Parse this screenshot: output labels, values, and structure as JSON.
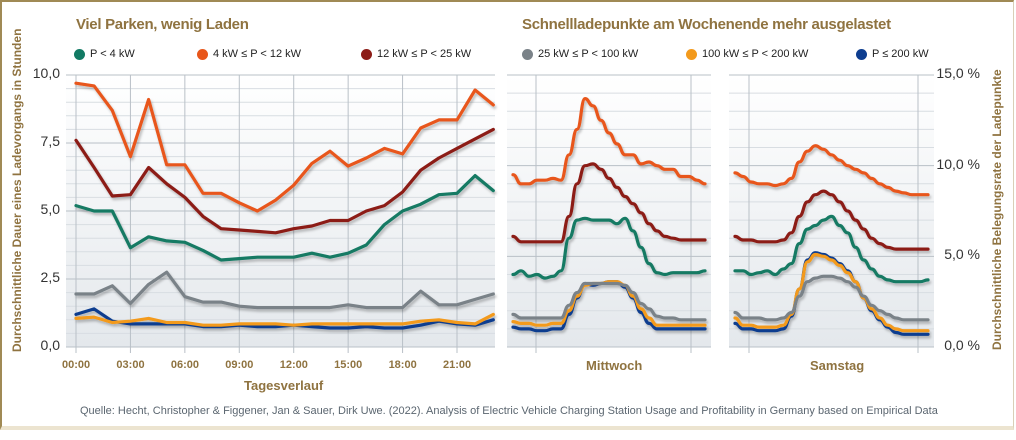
{
  "chart_data": [
    {
      "type": "line",
      "title": "Viel Parken, wenig Laden",
      "xlabel": "Tagesverlauf",
      "ylabel": "Durchschnittliche Dauer eines Ladevorgangs in Stunden",
      "ylim": [
        0,
        10
      ],
      "y_ticks": [
        "0,0",
        "2,5",
        "5,0",
        "7,5",
        "10,0"
      ],
      "y_tick_values": [
        0,
        2.5,
        5,
        7.5,
        10
      ],
      "x_ticks": [
        "00:00",
        "03:00",
        "06:00",
        "09:00",
        "12:00",
        "15:00",
        "18:00",
        "21:00"
      ],
      "x_tick_hours": [
        0,
        3,
        6,
        9,
        12,
        15,
        18,
        21
      ],
      "x": [
        0,
        1,
        2,
        3,
        4,
        5,
        6,
        7,
        8,
        9,
        10,
        11,
        12,
        13,
        14,
        15,
        16,
        17,
        18,
        19,
        20,
        21,
        22,
        23
      ],
      "legend": "top",
      "grid": true,
      "series": [
        {
          "name": "P < 4 kW",
          "color": "#127a64",
          "values": [
            5.2,
            5.0,
            5.0,
            3.65,
            4.05,
            3.9,
            3.85,
            3.55,
            3.2,
            3.25,
            3.3,
            3.3,
            3.3,
            3.45,
            3.3,
            3.45,
            3.75,
            4.5,
            5.0,
            5.25,
            5.6,
            5.65,
            6.3,
            5.75
          ]
        },
        {
          "name": "4 kW ≤ P < 12 kW",
          "color": "#e8561a",
          "values": [
            9.7,
            9.6,
            8.7,
            7.0,
            9.1,
            6.7,
            6.7,
            5.65,
            5.65,
            5.3,
            5.0,
            5.4,
            5.95,
            6.75,
            7.2,
            6.65,
            6.95,
            7.3,
            7.1,
            8.05,
            8.35,
            8.35,
            9.45,
            8.9
          ]
        },
        {
          "name": "12 kW ≤ P < 25 kW",
          "color": "#8c1c17",
          "values": [
            7.6,
            6.6,
            5.55,
            5.6,
            6.6,
            6.0,
            5.5,
            4.8,
            4.35,
            4.3,
            4.25,
            4.2,
            4.35,
            4.45,
            4.65,
            4.65,
            5.0,
            5.2,
            5.7,
            6.5,
            6.95,
            7.3,
            7.65,
            8.0
          ]
        },
        {
          "name": "25 kW ≤ P < 100 kW",
          "color": "#7a8288",
          "values": [
            1.95,
            1.95,
            2.25,
            1.6,
            2.3,
            2.75,
            1.85,
            1.65,
            1.65,
            1.5,
            1.45,
            1.45,
            1.45,
            1.45,
            1.45,
            1.55,
            1.45,
            1.45,
            1.45,
            2.05,
            1.55,
            1.55,
            1.75,
            1.95
          ]
        },
        {
          "name": "100 kW ≤ P < 200 kW",
          "color": "#f39a1c",
          "values": [
            1.05,
            1.1,
            0.9,
            0.95,
            1.05,
            0.9,
            0.9,
            0.8,
            0.8,
            0.85,
            0.85,
            0.85,
            0.8,
            0.85,
            0.85,
            0.85,
            0.85,
            0.85,
            0.85,
            0.95,
            1.0,
            0.9,
            0.85,
            1.2
          ]
        },
        {
          "name": "P ≤ 200 kW",
          "color": "#0d3d8f",
          "values": [
            1.2,
            1.4,
            0.95,
            0.85,
            0.85,
            0.85,
            0.85,
            0.75,
            0.75,
            0.8,
            0.75,
            0.75,
            0.8,
            0.75,
            0.7,
            0.7,
            0.75,
            0.7,
            0.7,
            0.8,
            0.95,
            0.85,
            0.8,
            1.0
          ]
        }
      ]
    },
    {
      "type": "line",
      "title": "Schnellladepunkte am Wochenende mehr ausgelastet",
      "ylabel": "Durchschnittliche Belegungsrate der Ladepunkte",
      "ylim": [
        0,
        15
      ],
      "y_ticks": [
        "0,0 %",
        "5,0 %",
        "10,0 %",
        "15,0 %"
      ],
      "y_tick_values": [
        0,
        5,
        10,
        15
      ],
      "panels": [
        "Mittwoch",
        "Samstag"
      ],
      "legend": "top",
      "grid": true,
      "x_hours": [
        0,
        1,
        2,
        3,
        4,
        5,
        6,
        7,
        8,
        9,
        10,
        11,
        12,
        13,
        14,
        15,
        16,
        17,
        18,
        19,
        20,
        21,
        22,
        23,
        24
      ],
      "series": [
        {
          "name": "P < 4 kW",
          "color": "#127a64",
          "Mittwoch": [
            4.0,
            4.2,
            3.9,
            4.0,
            3.8,
            3.9,
            4.2,
            6.0,
            7.0,
            7.1,
            7.0,
            7.0,
            7.0,
            6.8,
            7.1,
            6.4,
            5.5,
            4.6,
            4.1,
            4.0,
            4.1,
            4.1,
            4.1,
            4.1,
            4.2
          ],
          "Samstag": [
            4.2,
            4.2,
            4.0,
            4.1,
            4.2,
            4.0,
            4.3,
            4.6,
            5.7,
            6.5,
            6.7,
            7.0,
            7.2,
            6.7,
            6.3,
            5.5,
            4.8,
            4.3,
            3.9,
            3.7,
            3.6,
            3.6,
            3.6,
            3.6,
            3.7
          ]
        },
        {
          "name": "4 kW ≤ P < 12 kW",
          "color": "#e8561a",
          "Mittwoch": [
            9.5,
            9.0,
            9.0,
            9.2,
            9.2,
            9.3,
            9.2,
            10.6,
            12.0,
            13.7,
            13.3,
            12.5,
            11.8,
            11.2,
            10.6,
            10.6,
            10.1,
            10.2,
            10.0,
            9.8,
            9.8,
            9.4,
            9.4,
            9.2,
            9.0
          ],
          "Samstag": [
            9.6,
            9.4,
            9.1,
            9.0,
            9.0,
            8.9,
            9.0,
            9.3,
            10.2,
            10.8,
            11.1,
            10.9,
            10.6,
            10.3,
            10.0,
            9.8,
            9.6,
            9.3,
            9.0,
            8.8,
            8.6,
            8.5,
            8.4,
            8.4,
            8.4
          ]
        },
        {
          "name": "12 kW ≤ P < 25 kW",
          "color": "#8c1c17",
          "Mittwoch": [
            6.1,
            5.8,
            5.8,
            5.8,
            5.8,
            5.8,
            5.8,
            7.2,
            9.0,
            10.0,
            10.1,
            9.8,
            9.3,
            8.8,
            8.3,
            7.9,
            7.4,
            6.8,
            6.4,
            6.1,
            6.0,
            5.9,
            5.9,
            5.9,
            5.9
          ],
          "Samstag": [
            6.1,
            5.9,
            5.9,
            5.8,
            5.8,
            5.8,
            5.9,
            6.3,
            7.2,
            8.0,
            8.4,
            8.6,
            8.4,
            8.0,
            7.5,
            7.0,
            6.5,
            6.0,
            5.7,
            5.5,
            5.4,
            5.4,
            5.4,
            5.4,
            5.4
          ]
        },
        {
          "name": "25 kW ≤ P < 100 kW",
          "color": "#7a8288",
          "Mittwoch": [
            1.8,
            1.6,
            1.6,
            1.6,
            1.6,
            1.6,
            1.6,
            2.3,
            3.0,
            3.5,
            3.5,
            3.5,
            3.5,
            3.5,
            3.4,
            3.0,
            2.4,
            2.1,
            1.7,
            1.6,
            1.6,
            1.5,
            1.5,
            1.5,
            1.5
          ],
          "Samstag": [
            1.9,
            1.6,
            1.6,
            1.6,
            1.5,
            1.5,
            1.6,
            1.9,
            2.8,
            3.6,
            3.8,
            3.9,
            3.9,
            3.8,
            3.6,
            3.3,
            2.8,
            2.3,
            2.0,
            1.8,
            1.6,
            1.5,
            1.5,
            1.5,
            1.5
          ]
        },
        {
          "name": "100 kW ≤ P < 200 kW",
          "color": "#f39a1c",
          "Mittwoch": [
            1.4,
            1.3,
            1.3,
            1.2,
            1.2,
            1.3,
            1.3,
            2.0,
            2.8,
            3.4,
            3.5,
            3.5,
            3.6,
            3.6,
            3.4,
            2.8,
            2.1,
            1.6,
            1.2,
            1.2,
            1.2,
            1.2,
            1.2,
            1.2,
            1.2
          ],
          "Samstag": [
            1.6,
            1.2,
            1.2,
            1.1,
            1.1,
            1.1,
            1.2,
            1.8,
            3.2,
            4.7,
            5.1,
            5.0,
            4.8,
            4.5,
            4.1,
            3.6,
            2.7,
            2.1,
            1.6,
            1.2,
            1.0,
            0.9,
            0.9,
            0.9,
            0.9
          ]
        },
        {
          "name": "P ≤ 200 kW",
          "color": "#0d3d8f",
          "Mittwoch": [
            1.1,
            1.0,
            1.0,
            0.9,
            0.9,
            1.0,
            1.0,
            1.8,
            2.7,
            3.5,
            3.4,
            3.5,
            3.6,
            3.6,
            3.3,
            2.7,
            1.9,
            1.3,
            1.0,
            1.0,
            1.0,
            1.0,
            1.0,
            1.0,
            1.0
          ],
          "Samstag": [
            1.3,
            1.0,
            1.0,
            0.9,
            0.9,
            0.9,
            1.0,
            1.7,
            3.2,
            4.8,
            5.2,
            5.1,
            4.9,
            4.6,
            4.2,
            3.6,
            2.7,
            2.0,
            1.5,
            1.1,
            0.8,
            0.7,
            0.7,
            0.7,
            0.7
          ]
        }
      ]
    }
  ],
  "titles": {
    "left": "Viel Parken, wenig Laden",
    "right": "Schnellladepunkte am Wochenende mehr ausgelastet"
  },
  "legend_left": [
    "P < 4 kW",
    "4 kW ≤ P < 12 kW",
    "12 kW ≤ P < 25 kW"
  ],
  "legend_right": [
    "25 kW ≤ P < 100 kW",
    "100 kW ≤ P < 200 kW",
    "P ≤ 200 kW"
  ],
  "axis_labels": {
    "left_y": "Durchschnittliche Dauer eines Ladevorgangs in Stunden",
    "right_y": "Durchschnittliche Belegungsrate der Ladepunkte",
    "x_left": "Tagesverlauf",
    "panel_mittwoch": "Mittwoch",
    "panel_samstag": "Samstag"
  },
  "source": "Quelle: Hecht, Christopher & Figgener, Jan & Sauer, Dirk Uwe. (2022). Analysis of Electric Vehicle Charging Station Usage and Profitability in Germany based on Empirical Data"
}
